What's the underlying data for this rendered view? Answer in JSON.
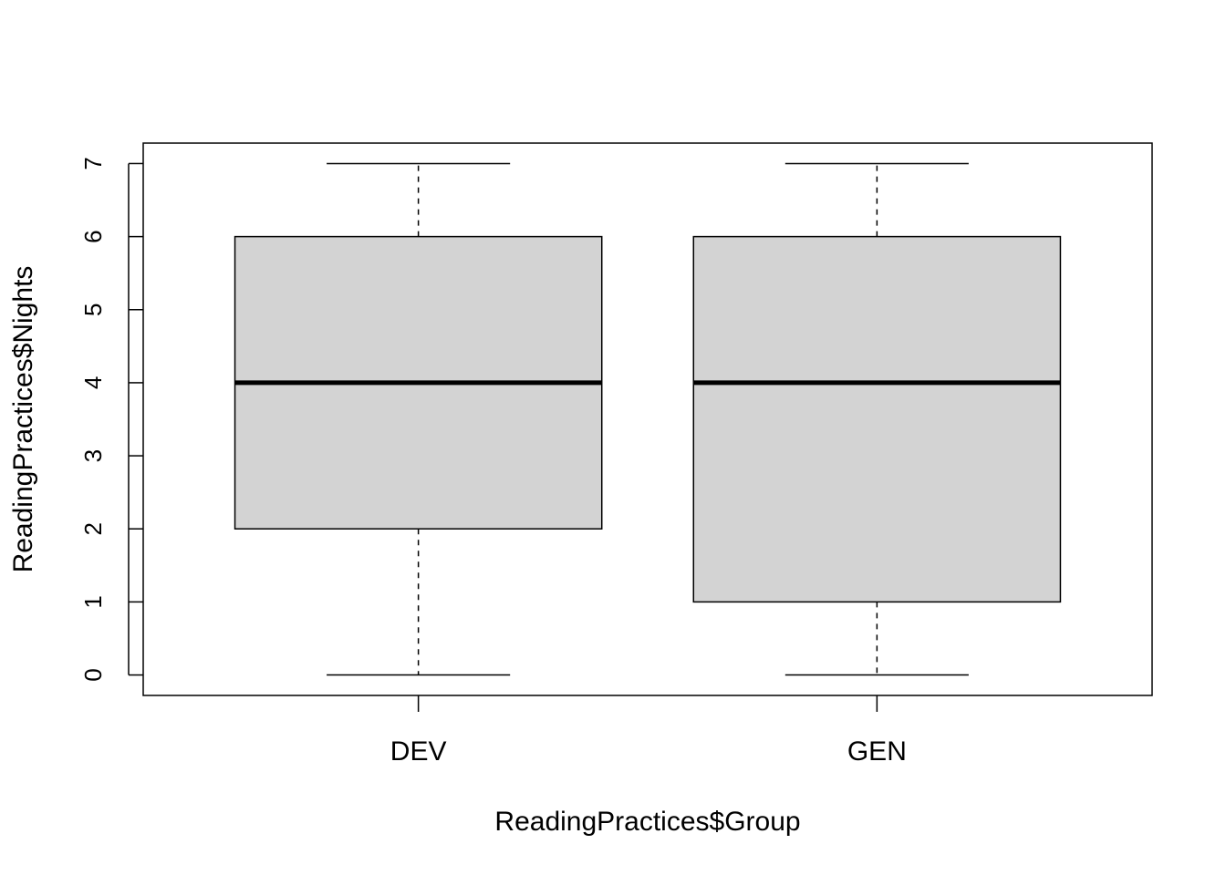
{
  "chart_data": {
    "type": "boxplot",
    "title": "",
    "xlabel": "ReadingPractices$Group",
    "ylabel": "ReadingPractices$Nights",
    "categories": [
      "DEV",
      "GEN"
    ],
    "boxes": [
      {
        "category": "DEV",
        "min": 0,
        "q1": 2,
        "median": 4,
        "q3": 6,
        "max": 7
      },
      {
        "category": "GEN",
        "min": 0,
        "q1": 1,
        "median": 4,
        "q3": 6,
        "max": 7
      }
    ],
    "ylim": [
      -0.28,
      7.28
    ],
    "yticks": [
      0,
      1,
      2,
      3,
      4,
      5,
      6,
      7
    ],
    "grid": false,
    "legend": "none",
    "colors": {
      "box_fill": "#d3d3d3",
      "stroke": "#000000",
      "background": "#ffffff"
    }
  }
}
